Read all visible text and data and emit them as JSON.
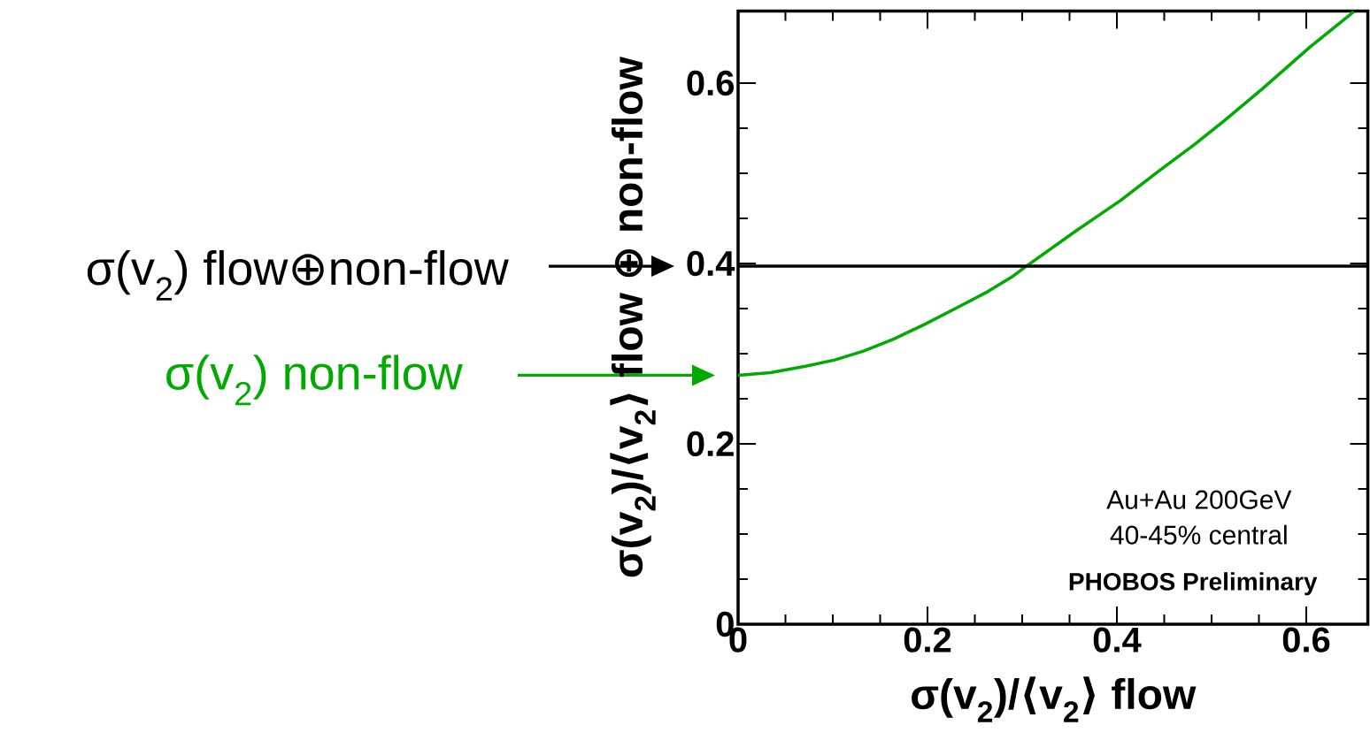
{
  "chart_data": {
    "type": "line",
    "xlabel": "σ(v$_{2}$)/⟨v$_{2}$⟩ flow",
    "ylabel": "σ(v$_{2}$)/⟨v$_{2}$⟩ flow ⊕ non-flow",
    "xlim": [
      0,
      0.665
    ],
    "ylim": [
      0,
      0.68
    ],
    "xticks": [
      0,
      0.2,
      0.4,
      0.6
    ],
    "yticks": [
      0,
      0.2,
      0.4,
      0.6
    ],
    "series": [
      {
        "name": "σ(v$_{2}$) non-flow",
        "color": "#00aa00",
        "x": [
          0,
          0.034,
          0.071,
          0.102,
          0.133,
          0.164,
          0.196,
          0.233,
          0.264,
          0.289,
          0.303,
          0.358,
          0.404,
          0.445,
          0.482,
          0.513,
          0.554,
          0.604,
          0.65
        ],
        "values": [
          0.276,
          0.279,
          0.286,
          0.293,
          0.303,
          0.316,
          0.332,
          0.352,
          0.369,
          0.385,
          0.396,
          0.437,
          0.47,
          0.503,
          0.532,
          0.558,
          0.594,
          0.64,
          0.679
        ]
      }
    ],
    "ref_lines": [
      {
        "axis": "y",
        "value": 0.397,
        "label": "σ(v$_{2}$) flow⊕non-flow",
        "color": "#000000"
      }
    ],
    "annotations": [
      "Au+Au 200GeV",
      "40-45% central",
      "PHOBOS Preliminary"
    ],
    "grid": false,
    "line_style": "solid"
  }
}
